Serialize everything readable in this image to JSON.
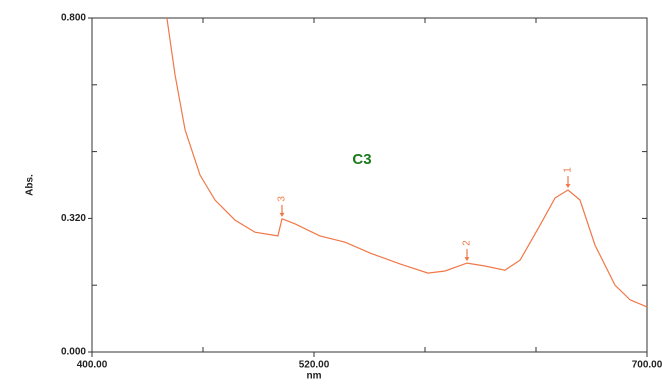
{
  "chart_data": {
    "type": "line",
    "title": "C3",
    "title_color": "#1a7a1a",
    "x_label": "nm",
    "y_label": "Abs.",
    "x": [
      440.5,
      444.9,
      450.3,
      458.4,
      466.5,
      477.3,
      488.1,
      500.5,
      502.7,
      509.7,
      523.2,
      536.8,
      550.3,
      566.5,
      581.6,
      590.8,
      602.7,
      612.4,
      623.2,
      631.4,
      642.2,
      650.3,
      657.3,
      663.8,
      671.9,
      682.7,
      690.8,
      700
    ],
    "series": [
      {
        "color": "#f07848",
        "values": [
          0.8,
          0.663,
          0.532,
          0.424,
          0.364,
          0.316,
          0.287,
          0.278,
          0.319,
          0.307,
          0.278,
          0.263,
          0.237,
          0.211,
          0.189,
          0.194,
          0.213,
          0.206,
          0.196,
          0.22,
          0.304,
          0.369,
          0.388,
          0.364,
          0.256,
          0.16,
          0.125,
          0.108
        ]
      }
    ],
    "peaks": [
      {
        "label": "1",
        "x": 657.3,
        "y": 0.388
      },
      {
        "label": "2",
        "x": 602.7,
        "y": 0.213
      },
      {
        "label": "3",
        "x": 502.7,
        "y": 0.319
      }
    ],
    "peak_color": "#f07848",
    "xlim": [
      400,
      700
    ],
    "ylim": [
      0,
      0.8
    ],
    "xticks": [
      {
        "value": 400,
        "label": "400.00"
      },
      {
        "value": 520,
        "label": "520.00"
      },
      {
        "value": 700,
        "label": "700.00"
      }
    ],
    "minor_xticks": [
      460,
      580,
      640
    ],
    "yticks": [
      {
        "value": 0,
        "label": "0.000"
      },
      {
        "value": 0.32,
        "label": "0.320"
      },
      {
        "value": 0.8,
        "label": "0.800"
      }
    ],
    "minor_yticks": [
      0.16,
      0.48,
      0.64
    ],
    "grid": false
  }
}
